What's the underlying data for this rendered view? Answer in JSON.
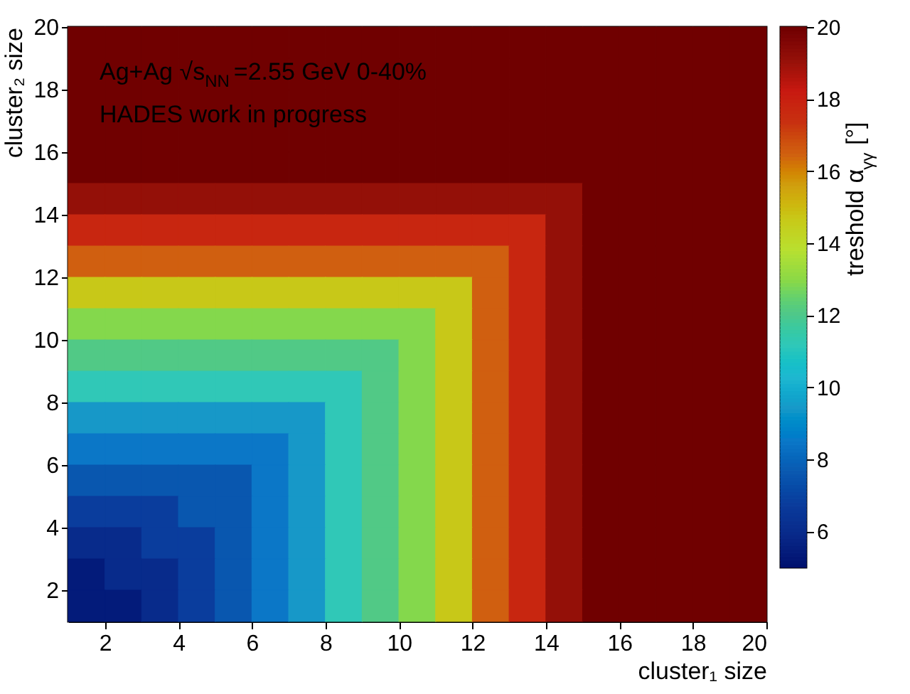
{
  "chart_data": {
    "type": "heatmap",
    "xlabel": "cluster₁ size",
    "ylabel": "cluster₂ size",
    "clabel": "treshold α$_{γγ}$ [°]",
    "annotations": [
      "Ag+Ag √s$_{NN}$=2.55 GeV 0-40%",
      "HADES work in progress"
    ],
    "x": [
      1.5,
      2.5,
      3.5,
      4.5,
      5.5,
      6.5,
      7.5,
      8.5,
      9.5,
      10.5,
      11.5,
      12.5,
      13.5,
      14.5,
      15.5,
      16.5,
      17.5,
      18.5,
      19.5
    ],
    "y": [
      19.5,
      18.5,
      17.5,
      16.5,
      15.5,
      14.5,
      13.5,
      12.5,
      11.5,
      10.5,
      9.5,
      8.5,
      7.5,
      6.5,
      5.5,
      4.5,
      3.5,
      2.5,
      1.5
    ],
    "xlim": [
      1,
      20
    ],
    "ylim": [
      1,
      20
    ],
    "xticks": [
      2,
      4,
      6,
      8,
      10,
      12,
      14,
      16,
      18,
      20
    ],
    "yticks": [
      2,
      4,
      6,
      8,
      10,
      12,
      14,
      16,
      18,
      20
    ],
    "clim": [
      5,
      20
    ],
    "cticks": [
      6,
      8,
      10,
      12,
      14,
      16,
      18,
      20
    ],
    "cells": [
      [
        20,
        20,
        20,
        20,
        20,
        20,
        20,
        20,
        20,
        20,
        20,
        20,
        20,
        20,
        20,
        20,
        20,
        20,
        20
      ],
      [
        20,
        20,
        20,
        20,
        20,
        20,
        20,
        20,
        20,
        20,
        20,
        20,
        20,
        20,
        20,
        20,
        20,
        20,
        20
      ],
      [
        20,
        20,
        20,
        20,
        20,
        20,
        20,
        20,
        20,
        20,
        20,
        20,
        20,
        20,
        20,
        20,
        20,
        20,
        20
      ],
      [
        20,
        20,
        20,
        20,
        20,
        20,
        20,
        20,
        20,
        20,
        20,
        20,
        20,
        20,
        20,
        20,
        20,
        20,
        20
      ],
      [
        20,
        20,
        20,
        20,
        20,
        20,
        20,
        20,
        20,
        20,
        20,
        20,
        20,
        20,
        20,
        20,
        20,
        20,
        20
      ],
      [
        19.1,
        19.1,
        19.1,
        19.1,
        19.1,
        19.1,
        19.1,
        19.1,
        19.1,
        19.1,
        19.1,
        19.1,
        19.1,
        19.1,
        20,
        20,
        20,
        20,
        20
      ],
      [
        17.8,
        17.8,
        17.8,
        17.8,
        17.8,
        17.8,
        17.8,
        17.8,
        17.8,
        17.8,
        17.8,
        17.8,
        17.8,
        19.1,
        20,
        20,
        20,
        20,
        20
      ],
      [
        16.5,
        16.5,
        16.5,
        16.5,
        16.5,
        16.5,
        16.5,
        16.5,
        16.5,
        16.5,
        16.5,
        16.5,
        17.8,
        19.1,
        20,
        20,
        20,
        20,
        20
      ],
      [
        14.7,
        14.7,
        14.7,
        14.7,
        14.7,
        14.7,
        14.7,
        14.7,
        14.7,
        14.7,
        14.7,
        16.5,
        17.8,
        19.1,
        20,
        20,
        20,
        20,
        20
      ],
      [
        12.9,
        12.9,
        12.9,
        12.9,
        12.9,
        12.9,
        12.9,
        12.9,
        12.9,
        12.9,
        14.7,
        16.5,
        17.8,
        19.1,
        20,
        20,
        20,
        20,
        20
      ],
      [
        12.1,
        12.1,
        12.1,
        12.1,
        12.1,
        12.1,
        12.1,
        12.1,
        12.1,
        12.9,
        14.7,
        16.5,
        17.8,
        19.1,
        20,
        20,
        20,
        20,
        20
      ],
      [
        11.2,
        11.2,
        11.2,
        11.2,
        11.2,
        11.2,
        11.2,
        11.2,
        12.1,
        12.9,
        14.7,
        16.5,
        17.8,
        19.1,
        20,
        20,
        20,
        20,
        20
      ],
      [
        9.4,
        9.4,
        9.4,
        9.4,
        9.4,
        9.4,
        9.4,
        11.2,
        12.1,
        12.9,
        14.7,
        16.5,
        17.8,
        19.1,
        20,
        20,
        20,
        20,
        20
      ],
      [
        8.5,
        8.5,
        8.5,
        8.5,
        8.5,
        8.5,
        9.4,
        11.2,
        12.1,
        12.9,
        14.7,
        16.5,
        17.8,
        19.1,
        20,
        20,
        20,
        20,
        20
      ],
      [
        7.6,
        7.6,
        7.6,
        7.6,
        7.6,
        8.5,
        9.4,
        11.2,
        12.1,
        12.9,
        14.7,
        16.5,
        17.8,
        19.1,
        20,
        20,
        20,
        20,
        20
      ],
      [
        6.8,
        6.8,
        6.8,
        7.6,
        7.6,
        8.5,
        9.4,
        11.2,
        12.1,
        12.9,
        14.7,
        16.5,
        17.8,
        19.1,
        20,
        20,
        20,
        20,
        20
      ],
      [
        6,
        6,
        6.8,
        6.8,
        7.6,
        8.5,
        9.4,
        11.2,
        12.1,
        12.9,
        14.7,
        16.5,
        17.8,
        19.1,
        20,
        20,
        20,
        20,
        20
      ],
      [
        5.4,
        6,
        6,
        6.8,
        7.6,
        8.5,
        9.4,
        11.2,
        12.1,
        12.9,
        14.7,
        16.5,
        17.8,
        19.1,
        20,
        20,
        20,
        20,
        20
      ],
      [
        5.4,
        5.4,
        6,
        6.8,
        7.6,
        8.5,
        9.4,
        11.2,
        12.1,
        12.9,
        14.7,
        16.5,
        17.8,
        19.1,
        20,
        20,
        20,
        20,
        20
      ]
    ]
  }
}
